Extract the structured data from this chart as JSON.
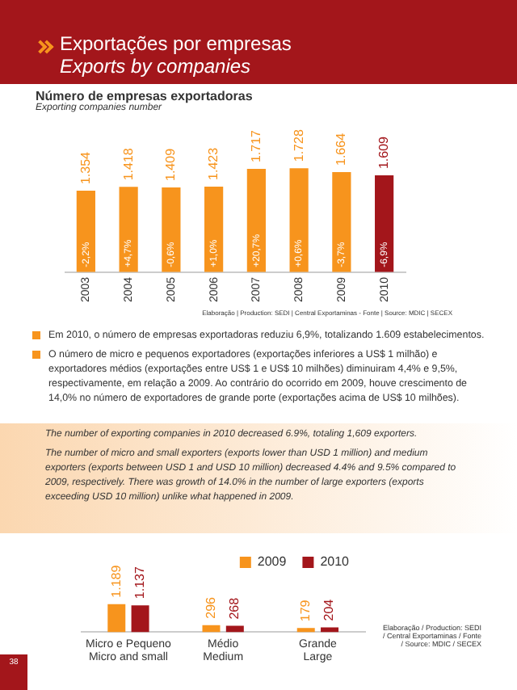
{
  "chart_data": [
    {
      "type": "bar",
      "title": "Número de empresas exportadoras",
      "subtitle": "Exporting companies number",
      "categories": [
        "2003",
        "2004",
        "2005",
        "2006",
        "2007",
        "2008",
        "2009",
        "2010"
      ],
      "values": [
        1354,
        1418,
        1409,
        1423,
        1717,
        1728,
        1664,
        1609
      ],
      "colors": [
        "#f7941d",
        "#f7941d",
        "#f7941d",
        "#f7941d",
        "#f7941d",
        "#f7941d",
        "#f7941d",
        "#a3161b"
      ],
      "value_labels": [
        "1.354",
        "1.418",
        "1.409",
        "1.423",
        "1.717",
        "1.728",
        "1.664",
        "1.609"
      ],
      "grid": false,
      "annotations": [
        "Exportações por empresas",
        "Exports by companies",
        "Elaboração | Production: SEDI | Central Exportaminas - Fonte | Source: MDIC | SECEX",
        "Em 2010, o número de empresas exportadoras reduziu 6,9%, totalizando 1.609 estabelecimentos.",
        "O número de micro e pequenos exportadores (exportações inferiores a US$ 1 milhão) e exportadores médios (exportações entre US$ 1 e US$ 10 milhões) diminuiram 4,4% e 9,5%, respectivamente, em relação a 2009. Ao contrário do ocorrido em 2009, houve crescimento de 14,0% no número de exportadores de grande porte (exportações acima de US$ 10 milhões).",
        {
          "text": "-2,2%",
          "x": "2003",
          "y": 0
        },
        {
          "text": "+4,7%",
          "x": "2004",
          "y": 0
        },
        {
          "text": "-0,6%",
          "x": "2005",
          "y": 0
        },
        {
          "text": "+1,0%",
          "x": "2006",
          "y": 0
        },
        {
          "text": "+20,7%",
          "x": "2007",
          "y": 0
        },
        {
          "text": "+0,6%",
          "x": "2008",
          "y": 0
        },
        {
          "text": "-3,7%",
          "x": "2009",
          "y": 0
        },
        {
          "text": "-6,9%",
          "x": "2010",
          "y": 0
        }
      ]
    },
    {
      "type": "bar",
      "categories": [
        "Micro e Pequeno\nMicro and small",
        "Médio\nMedium",
        "Grande\nLarge"
      ],
      "series": [
        {
          "name": "2009",
          "color": "#f7941d",
          "values": [
            1189,
            296,
            179
          ],
          "value_labels": [
            "1.189",
            "296",
            "179"
          ]
        },
        {
          "name": "2010",
          "color": "#a3161b",
          "values": [
            1137,
            268,
            204
          ],
          "value_labels": [
            "1.137",
            "268",
            "204"
          ]
        }
      ],
      "legend": "top right",
      "grid": false,
      "annotations": [
        "The number of exporting companies in 2010 decreased 6.9%, totaling 1,609 exporters.",
        "The number of micro and small exporters (exports lower than USD 1 million) and medium exporters (exports between USD 1 and USD 10 million) decreased 4.4% and 9.5% compared to 2009, respectively. There was growth of 14.0% in the number of large exporters (exports exceeding USD 10 million) unlike what happened in 2009.",
        "Elaboração / Production: SEDI / Central Exportaminas / Fonte / Source: MDIC / SECEX",
        "38"
      ]
    }
  ]
}
